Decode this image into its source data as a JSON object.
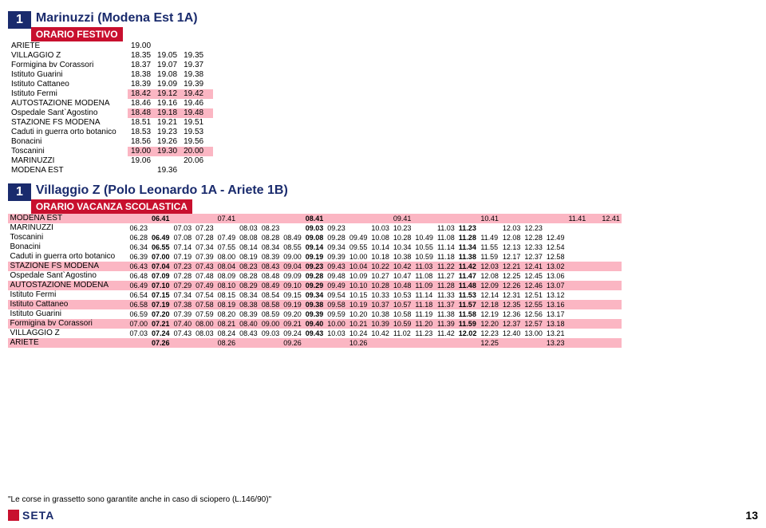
{
  "routes": [
    {
      "num": "1",
      "title": "Marinuzzi (Modena Est 1A)",
      "band": "ORARIO FESTIVO",
      "highlight_rows": [
        5,
        7,
        11
      ],
      "rows": [
        {
          "stop": "ARIETE",
          "times": [
            "19.00",
            "",
            "",
            ""
          ]
        },
        {
          "stop": "VILLAGGIO Z",
          "times": [
            "18.35",
            "19.05",
            "19.35",
            ""
          ]
        },
        {
          "stop": "Formigina bv Corassori",
          "times": [
            "18.37",
            "19.07",
            "19.37",
            ""
          ]
        },
        {
          "stop": "Istituto Guarini",
          "times": [
            "18.38",
            "19.08",
            "19.38",
            ""
          ]
        },
        {
          "stop": "Istituto Cattaneo",
          "times": [
            "18.39",
            "19.09",
            "19.39",
            ""
          ]
        },
        {
          "stop": "Istituto Fermi",
          "times": [
            "18.42",
            "19.12",
            "19.42",
            ""
          ]
        },
        {
          "stop": "AUTOSTAZIONE MODENA",
          "times": [
            "18.46",
            "19.16",
            "19.46",
            ""
          ]
        },
        {
          "stop": "Ospedale Sant`Agostino",
          "times": [
            "18.48",
            "19.18",
            "19.48",
            ""
          ]
        },
        {
          "stop": "STAZIONE FS MODENA",
          "times": [
            "18.51",
            "19.21",
            "19.51",
            ""
          ]
        },
        {
          "stop": "Caduti in guerra orto botanico",
          "times": [
            "18.53",
            "19.23",
            "19.53",
            ""
          ]
        },
        {
          "stop": "Bonacini",
          "times": [
            "18.56",
            "19.26",
            "19.56",
            ""
          ]
        },
        {
          "stop": "Toscanini",
          "times": [
            "19.00",
            "19.30",
            "20.00",
            ""
          ]
        },
        {
          "stop": "MARINUZZI",
          "times": [
            "19.06",
            "",
            "20.06",
            ""
          ]
        },
        {
          "stop": "MODENA EST",
          "times": [
            "",
            "19.36",
            "",
            ""
          ]
        }
      ]
    },
    {
      "num": "1",
      "title": "Villaggio Z (Polo Leonardo 1A - Ariete 1B)",
      "band": "ORARIO VACANZA SCOLASTICA",
      "highlight_rows": [
        0,
        5,
        7,
        9,
        11,
        13
      ],
      "bold_cols": [
        1,
        8,
        15,
        22
      ],
      "rows": [
        {
          "stop": "MODENA EST",
          "times": [
            "",
            "06.41",
            "",
            "",
            "07.41",
            "",
            "",
            "",
            "08.41",
            "",
            "",
            "",
            "09.41",
            "",
            "",
            "",
            "10.41",
            "",
            "",
            "",
            "11.41",
            "",
            "",
            "",
            "12.41"
          ]
        },
        {
          "stop": "MARINUZZI",
          "times": [
            "06.23",
            "",
            "07.03",
            "07.23",
            "",
            "08.03",
            "08.23",
            "",
            "09.03",
            "09.23",
            "",
            "10.03",
            "10.23",
            "",
            "11.03",
            "11.23",
            "",
            "12.03",
            "12.23",
            "",
            "",
            "",
            "",
            "",
            ""
          ]
        },
        {
          "stop": "Toscanini",
          "times": [
            "06.28",
            "06.49",
            "07.08",
            "07.28",
            "07.49",
            "08.08",
            "08.28",
            "08.49",
            "09.08",
            "09.28",
            "09.49",
            "10.08",
            "10.28",
            "10.49",
            "11.08",
            "11.28",
            "11.49",
            "12.08",
            "12.28",
            "12.49",
            "",
            "",
            "",
            "",
            ""
          ]
        },
        {
          "stop": "Bonacini",
          "times": [
            "06.34",
            "06.55",
            "07.14",
            "07.34",
            "07.55",
            "08.14",
            "08.34",
            "08.55",
            "09.14",
            "09.34",
            "09.55",
            "10.14",
            "10.34",
            "10.55",
            "11.14",
            "11.34",
            "11.55",
            "12.13",
            "12.33",
            "12.54",
            "",
            "",
            "",
            "",
            ""
          ]
        },
        {
          "stop": "Caduti in guerra orto botanico",
          "times": [
            "06.39",
            "07.00",
            "07.19",
            "07.39",
            "08.00",
            "08.19",
            "08.39",
            "09.00",
            "09.19",
            "09.39",
            "10.00",
            "10.18",
            "10.38",
            "10.59",
            "11.18",
            "11.38",
            "11.59",
            "12.17",
            "12.37",
            "12.58",
            "",
            "",
            "",
            "",
            ""
          ]
        },
        {
          "stop": "STAZIONE FS MODENA",
          "times": [
            "06.43",
            "07.04",
            "07.23",
            "07.43",
            "08.04",
            "08.23",
            "08.43",
            "09.04",
            "09.23",
            "09.43",
            "10.04",
            "10.22",
            "10.42",
            "11.03",
            "11.22",
            "11.42",
            "12.03",
            "12.21",
            "12.41",
            "13.02",
            "",
            "",
            "",
            "",
            ""
          ]
        },
        {
          "stop": "Ospedale Sant`Agostino",
          "times": [
            "06.48",
            "07.09",
            "07.28",
            "07.48",
            "08.09",
            "08.28",
            "08.48",
            "09.09",
            "09.28",
            "09.48",
            "10.09",
            "10.27",
            "10.47",
            "11.08",
            "11.27",
            "11.47",
            "12.08",
            "12.25",
            "12.45",
            "13.06",
            "",
            "",
            "",
            "",
            ""
          ]
        },
        {
          "stop": "AUTOSTAZIONE MODENA",
          "times": [
            "06.49",
            "07.10",
            "07.29",
            "07.49",
            "08.10",
            "08.29",
            "08.49",
            "09.10",
            "09.29",
            "09.49",
            "10.10",
            "10.28",
            "10.48",
            "11.09",
            "11.28",
            "11.48",
            "12.09",
            "12.26",
            "12.46",
            "13.07",
            "",
            "",
            "",
            "",
            ""
          ]
        },
        {
          "stop": "Istituto Fermi",
          "times": [
            "06.54",
            "07.15",
            "07.34",
            "07.54",
            "08.15",
            "08.34",
            "08.54",
            "09.15",
            "09.34",
            "09.54",
            "10.15",
            "10.33",
            "10.53",
            "11.14",
            "11.33",
            "11.53",
            "12.14",
            "12.31",
            "12.51",
            "13.12",
            "",
            "",
            "",
            "",
            ""
          ]
        },
        {
          "stop": "Istituto Cattaneo",
          "times": [
            "06.58",
            "07.19",
            "07.38",
            "07.58",
            "08.19",
            "08.38",
            "08.58",
            "09.19",
            "09.38",
            "09.58",
            "10.19",
            "10.37",
            "10.57",
            "11.18",
            "11.37",
            "11.57",
            "12.18",
            "12.35",
            "12.55",
            "13.16",
            "",
            "",
            "",
            "",
            ""
          ]
        },
        {
          "stop": "Istituto Guarini",
          "times": [
            "06.59",
            "07.20",
            "07.39",
            "07.59",
            "08.20",
            "08.39",
            "08.59",
            "09.20",
            "09.39",
            "09.59",
            "10.20",
            "10.38",
            "10.58",
            "11.19",
            "11.38",
            "11.58",
            "12.19",
            "12.36",
            "12.56",
            "13.17",
            "",
            "",
            "",
            "",
            ""
          ]
        },
        {
          "stop": "Formigina bv Corassori",
          "times": [
            "07.00",
            "07.21",
            "07.40",
            "08.00",
            "08.21",
            "08.40",
            "09.00",
            "09.21",
            "09.40",
            "10.00",
            "10.21",
            "10.39",
            "10.59",
            "11.20",
            "11.39",
            "11.59",
            "12.20",
            "12.37",
            "12.57",
            "13.18",
            "",
            "",
            "",
            "",
            ""
          ]
        },
        {
          "stop": "VILLAGGIO Z",
          "times": [
            "07.03",
            "07.24",
            "07.43",
            "08.03",
            "08.24",
            "08.43",
            "09.03",
            "09.24",
            "09.43",
            "10.03",
            "10.24",
            "10.42",
            "11.02",
            "11.23",
            "11.42",
            "12.02",
            "12.23",
            "12.40",
            "13.00",
            "13.21",
            "",
            "",
            "",
            "",
            ""
          ]
        },
        {
          "stop": "ARIETE",
          "times": [
            "",
            "07.26",
            "",
            "",
            "08.26",
            "",
            "",
            "09.26",
            "",
            "",
            "10.26",
            "",
            "",
            "",
            "",
            "",
            "12.25",
            "",
            "",
            "13.23",
            "",
            "",
            "",
            "",
            ""
          ]
        }
      ]
    }
  ],
  "footer_note": "\"Le corse in grassetto sono garantite anche in caso di sciopero (L.146/90)\"",
  "logo": "SETA",
  "page": "13"
}
